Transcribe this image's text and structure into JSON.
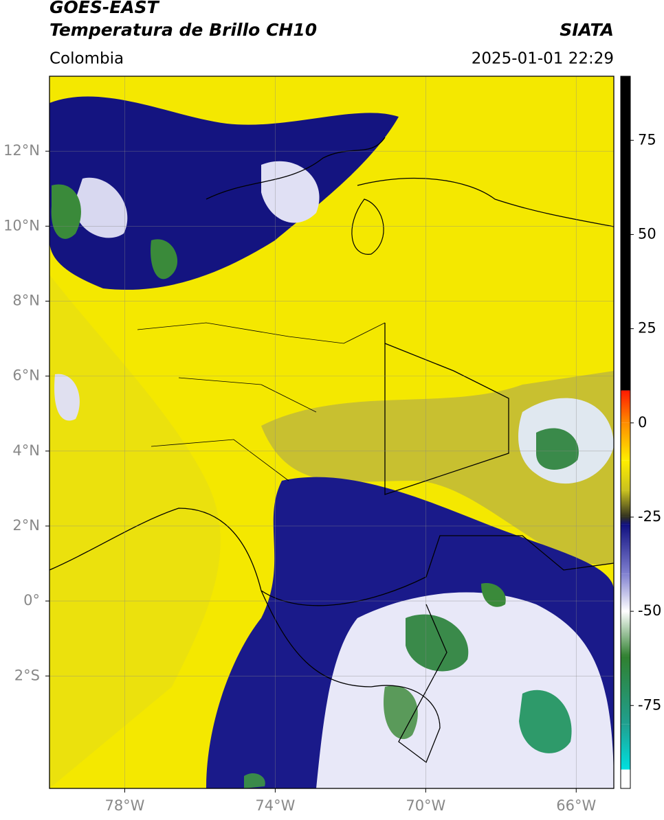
{
  "header": {
    "title": "GOES-EAST",
    "subtitle": "Temperatura de Brillo CH10",
    "source": "SIATA",
    "region": "Colombia",
    "timestamp": "2025-01-01 22:29"
  },
  "map": {
    "xlim": [
      -80,
      -65
    ],
    "ylim": [
      -5,
      14
    ],
    "xticks": [
      {
        "value": -78,
        "label": "78°W"
      },
      {
        "value": -74,
        "label": "74°W"
      },
      {
        "value": -70,
        "label": "70°W"
      },
      {
        "value": -66,
        "label": "66°W"
      }
    ],
    "yticks": [
      {
        "value": 12,
        "label": "12°N"
      },
      {
        "value": 10,
        "label": "10°N"
      },
      {
        "value": 8,
        "label": "8°N"
      },
      {
        "value": 6,
        "label": "6°N"
      },
      {
        "value": 4,
        "label": "4°N"
      },
      {
        "value": 2,
        "label": "2°N"
      },
      {
        "value": 0,
        "label": "0°"
      },
      {
        "value": -2,
        "label": "2°S"
      }
    ],
    "grid": true
  },
  "colorbar": {
    "lim": [
      -97,
      92
    ],
    "ticks": [
      75,
      50,
      25,
      0,
      -25,
      -50,
      -75
    ],
    "stops": [
      {
        "value": 92,
        "color": "#000000"
      },
      {
        "value": 8.6,
        "color": "#000000"
      },
      {
        "value": 8.6,
        "color": "#ff1a00"
      },
      {
        "value": 0,
        "color": "#ff8c00"
      },
      {
        "value": -10,
        "color": "#ffee00"
      },
      {
        "value": -18,
        "color": "#c8c020"
      },
      {
        "value": -25,
        "color": "#303020"
      },
      {
        "value": -27,
        "color": "#101080"
      },
      {
        "value": -40,
        "color": "#8080d0"
      },
      {
        "value": -50,
        "color": "#ffffff"
      },
      {
        "value": -62,
        "color": "#308030"
      },
      {
        "value": -80,
        "color": "#20a090"
      },
      {
        "value": -92,
        "color": "#00e0e0"
      },
      {
        "value": -92,
        "color": "#ffffff"
      },
      {
        "value": -97,
        "color": "#ffffff"
      }
    ]
  }
}
